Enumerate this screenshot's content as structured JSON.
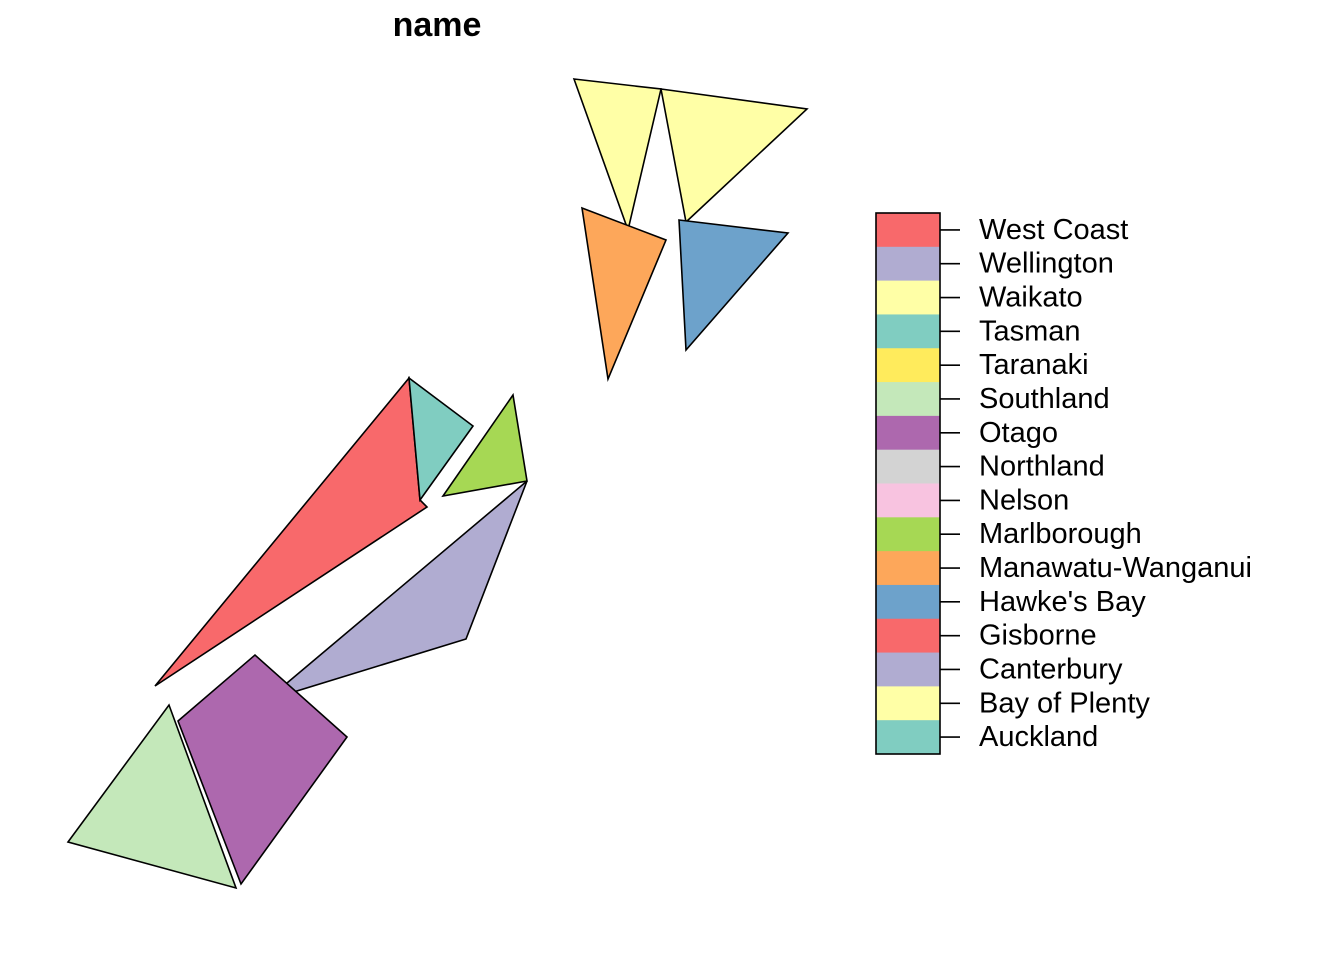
{
  "title": "name",
  "regions": [
    {
      "name": "West Coast",
      "color": "#F8696B"
    },
    {
      "name": "Tasman",
      "color": "#80CDC1"
    },
    {
      "name": "Marlborough",
      "color": "#A6D854"
    },
    {
      "name": "Canterbury",
      "color": "#B0ACD1"
    },
    {
      "name": "Otago",
      "color": "#AD68AE"
    },
    {
      "name": "Southland",
      "color": "#C4E8BA"
    },
    {
      "name": "Waikato",
      "color": "#FFFFA6"
    },
    {
      "name": "Manawatu-Wanganui",
      "color": "#FDA75A"
    },
    {
      "name": "Hawke's Bay",
      "color": "#6DA2CB"
    }
  ],
  "legend": [
    {
      "label": "West Coast",
      "color": "#F8696B"
    },
    {
      "label": "Wellington",
      "color": "#B0ACD1"
    },
    {
      "label": "Waikato",
      "color": "#FFFFA6"
    },
    {
      "label": "Tasman",
      "color": "#80CDC1"
    },
    {
      "label": "Taranaki",
      "color": "#FFEB5C"
    },
    {
      "label": "Southland",
      "color": "#C4E8BA"
    },
    {
      "label": "Otago",
      "color": "#AD68AE"
    },
    {
      "label": "Northland",
      "color": "#D3D3D3"
    },
    {
      "label": "Nelson",
      "color": "#F8C3E0"
    },
    {
      "label": "Marlborough",
      "color": "#A6D854"
    },
    {
      "label": "Manawatu-Wanganui",
      "color": "#FDA75A"
    },
    {
      "label": "Hawke's Bay",
      "color": "#6DA2CB"
    },
    {
      "label": "Gisborne",
      "color": "#F8696B"
    },
    {
      "label": "Canterbury",
      "color": "#B0ACD1"
    },
    {
      "label": "Bay of Plenty",
      "color": "#FFFFA6"
    },
    {
      "label": "Auckland",
      "color": "#80CDC1"
    }
  ]
}
